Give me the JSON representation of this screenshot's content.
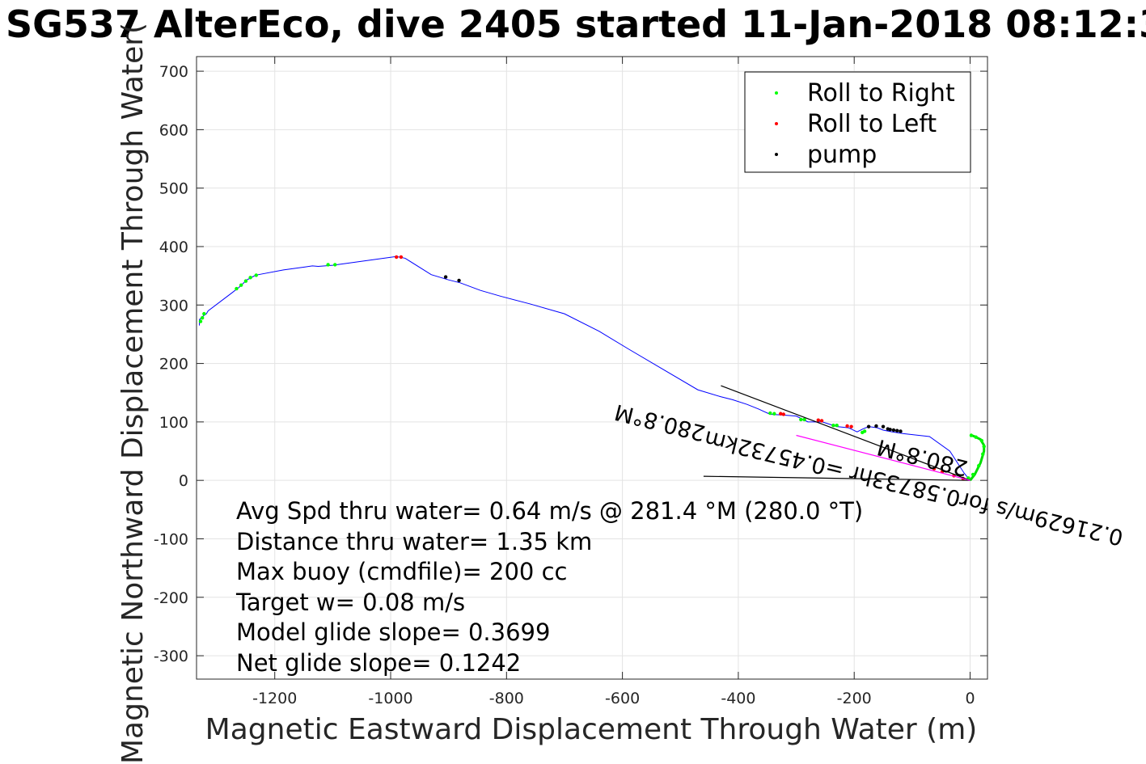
{
  "chart_data": {
    "type": "line",
    "title": "SG537 AlterEco, dive 2405 started 11-Jan-2018 08:12:3",
    "xlabel": "Magnetic Eastward Displacement Through Water (m)",
    "ylabel": "Magnetic Northward Displacement Through Water(",
    "xlim": [
      -1335,
      30
    ],
    "ylim": [
      -340,
      725
    ],
    "xticks": [
      -1200,
      -1000,
      -800,
      -600,
      -400,
      -200,
      0
    ],
    "yticks": [
      -300,
      -200,
      -100,
      0,
      100,
      200,
      300,
      400,
      500,
      600,
      700
    ],
    "grid": true,
    "legend_position": "top-right",
    "legend": [
      {
        "label": "Roll to Right",
        "color": "#00ff00"
      },
      {
        "label": "Roll to Left",
        "color": "#ff0000"
      },
      {
        "label": "pump",
        "color": "#000000"
      }
    ],
    "track_color": "#0000ff",
    "track": {
      "x": [
        0,
        -10,
        -35,
        -70,
        -115,
        -135,
        -150,
        -160,
        -175,
        -185,
        -195,
        -210,
        -230,
        -255,
        -280,
        -300,
        -325,
        -345,
        -365,
        -385,
        -410,
        -430,
        -470,
        -530,
        -590,
        -640,
        -700,
        -760,
        -810,
        -845,
        -880,
        -900,
        -930,
        -975,
        -990,
        -1100,
        -1125,
        -1135,
        -1148,
        -1185,
        -1228,
        -1235,
        -1248,
        -1262,
        -1275,
        -1315,
        -1318,
        -1325,
        -1330,
        -1330
      ],
      "y": [
        0,
        12,
        50,
        75,
        80,
        83,
        86,
        90,
        92,
        88,
        83,
        90,
        92,
        100,
        100,
        110,
        112,
        113,
        122,
        130,
        138,
        143,
        155,
        190,
        225,
        255,
        285,
        302,
        315,
        325,
        338,
        343,
        352,
        380,
        383,
        368,
        366,
        367,
        365,
        360,
        352,
        350,
        343,
        330,
        320,
        290,
        285,
        280,
        275,
        265
      ]
    },
    "turn_loop": {
      "x": [
        0,
        8,
        18,
        24,
        24,
        18,
        8,
        0
      ],
      "y": [
        0,
        10,
        30,
        50,
        60,
        70,
        75,
        78
      ]
    },
    "roll_right_points": {
      "x": [
        -3,
        5,
        15,
        22,
        24,
        20,
        10,
        2,
        -1325,
        -1328,
        -1322,
        -1266,
        -1258,
        -1250,
        -1242,
        -1232,
        -1108,
        -1096,
        -345,
        -338,
        -292,
        -286,
        -236,
        -230,
        -186,
        -182
      ],
      "y": [
        4,
        10,
        25,
        45,
        58,
        68,
        74,
        77,
        278,
        272,
        285,
        328,
        334,
        341,
        347,
        351,
        369,
        369,
        115,
        114,
        104,
        104,
        94,
        94,
        82,
        84
      ]
    },
    "roll_left_points": {
      "x": [
        -990,
        -982,
        -327,
        -322,
        -262,
        -256,
        -212,
        -205,
        -62,
        -48,
        -28,
        -12
      ],
      "y": [
        382,
        382,
        114,
        113,
        103,
        102,
        93,
        92,
        20,
        15,
        8,
        3
      ]
    },
    "pump_points": {
      "x": [
        -905,
        -882,
        -175,
        -162,
        -150,
        -142,
        -138,
        -132,
        -126,
        -120
      ],
      "y": [
        348,
        342,
        92,
        93,
        92,
        88,
        87,
        86,
        85,
        84
      ]
    },
    "vector_lines": [
      {
        "from": [
          0,
          0
        ],
        "to": [
          -430,
          162
        ],
        "color": "#000000"
      },
      {
        "from": [
          0,
          0
        ],
        "to": [
          -460,
          7
        ],
        "color": "#000000"
      },
      {
        "from": [
          0,
          0
        ],
        "to": [
          -300,
          77
        ],
        "color": "#ff00ff"
      }
    ],
    "vector_labels": [
      {
        "text": "0.21629m/s for0.58733hr =0.45732km",
        "anchor": [
          -455,
          85
        ]
      },
      {
        "text": "280.8°M",
        "anchor": [
          -2,
          32
        ]
      },
      {
        "text": "280.8°M",
        "anchor": [
          -455,
          92
        ]
      }
    ],
    "stats_lines": [
      "Avg Spd thru water=  0.64 m/s @ 281.4 °M (280.0 °T)",
      "Distance thru water=  1.35 km",
      "Max buoy (cmdfile)= 200 cc",
      "Target w= 0.08 m/s",
      "Model glide slope= 0.3699",
      "Net glide slope= 0.1242"
    ]
  }
}
